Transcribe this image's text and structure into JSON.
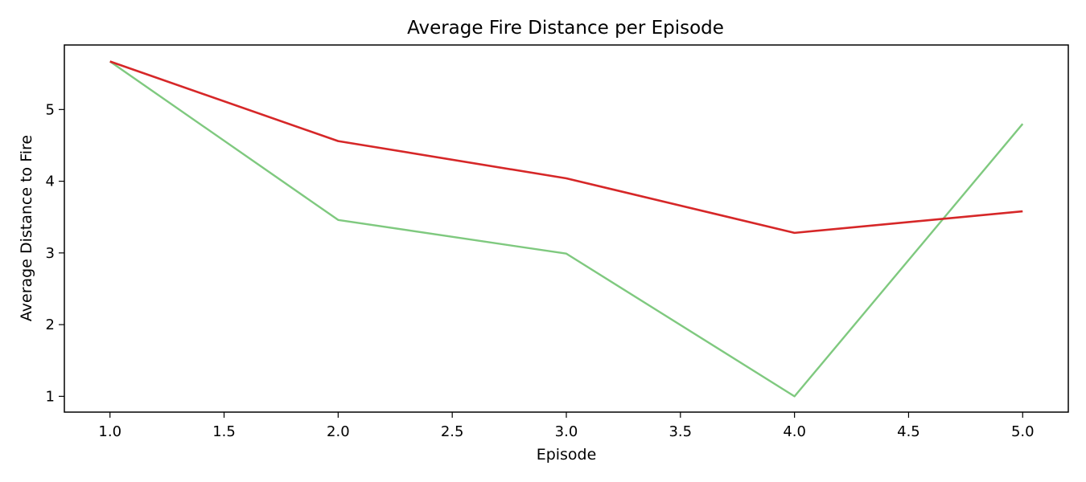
{
  "chart_data": {
    "type": "line",
    "title": "Average Fire Distance per Episode",
    "xlabel": "Episode",
    "ylabel": "Average Distance to Fire",
    "xlim": [
      0.8,
      5.2
    ],
    "ylim": [
      0.78,
      5.9
    ],
    "grid": false,
    "x_ticks": [
      1.0,
      1.5,
      2.0,
      2.5,
      3.0,
      3.5,
      4.0,
      4.5,
      5.0
    ],
    "x_tick_labels": [
      "1.0",
      "1.5",
      "2.0",
      "2.5",
      "3.0",
      "3.5",
      "4.0",
      "4.5",
      "5.0"
    ],
    "y_ticks": [
      1,
      2,
      3,
      4,
      5
    ],
    "y_tick_labels": [
      "1",
      "2",
      "3",
      "4",
      "5"
    ],
    "x": [
      1,
      2,
      3,
      4,
      5
    ],
    "series": [
      {
        "values": [
          5.67,
          4.56,
          4.04,
          3.28,
          3.58
        ],
        "color": "#d62728"
      },
      {
        "values": [
          5.67,
          3.46,
          2.99,
          1.0,
          4.8
        ],
        "color": "#7fc97f"
      }
    ]
  }
}
